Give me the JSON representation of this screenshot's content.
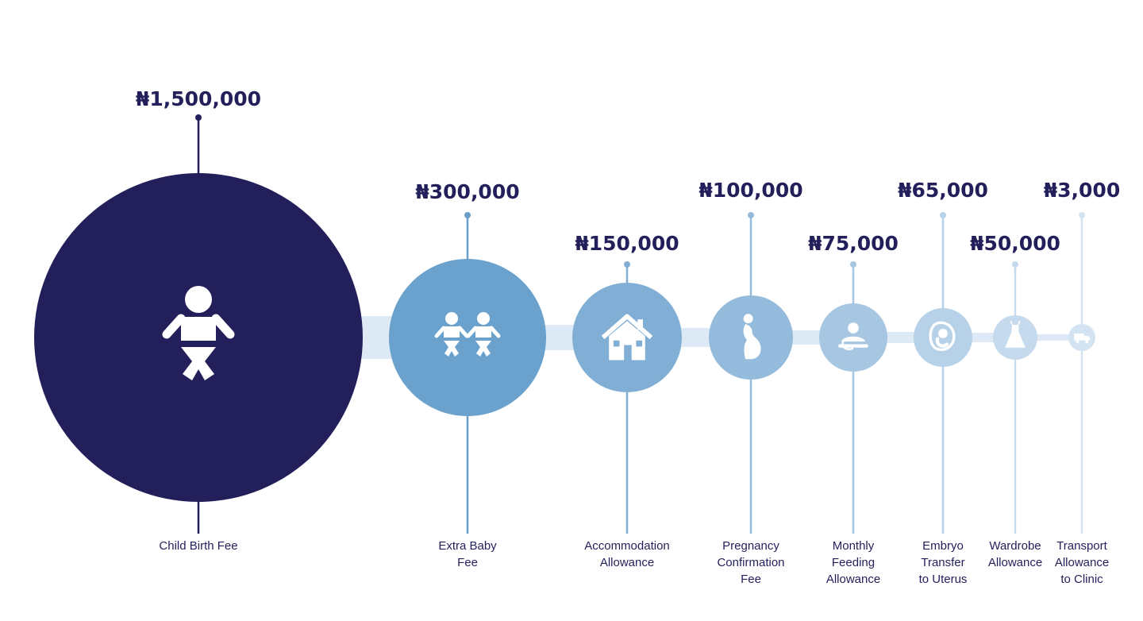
{
  "chart_data": {
    "type": "bubble",
    "currency_symbol": "₦",
    "items": [
      {
        "label_lines": [
          "Child Birth Fee"
        ],
        "amount": "₦1,500,000",
        "value": 1500000,
        "color": "#231f5a",
        "stem_color": "#231f5a",
        "icon": "baby-icon"
      },
      {
        "label_lines": [
          "Extra Baby",
          "Fee"
        ],
        "amount": "₦300,000",
        "value": 300000,
        "color": "#6aa2cd",
        "stem_color": "#6a9ec8",
        "icon": "twin-babies-icon"
      },
      {
        "label_lines": [
          "Accommodation",
          "Allowance"
        ],
        "amount": "₦150,000",
        "value": 150000,
        "color": "#80aed4",
        "stem_color": "#80aed4",
        "icon": "house-icon"
      },
      {
        "label_lines": [
          "Pregnancy",
          "Confirmation",
          "Fee"
        ],
        "amount": "₦100,000",
        "value": 100000,
        "color": "#95bbdc",
        "stem_color": "#95bbdc",
        "icon": "pregnant-woman-icon"
      },
      {
        "label_lines": [
          "Monthly",
          "Feeding",
          "Allowance"
        ],
        "amount": "₦75,000",
        "value": 75000,
        "color": "#a6c6e2",
        "stem_color": "#a6c6e2",
        "icon": "feeding-icon"
      },
      {
        "label_lines": [
          "Embryo",
          "Transfer",
          "to Uterus"
        ],
        "amount": "₦65,000",
        "value": 65000,
        "color": "#b7d1e8",
        "stem_color": "#b7d1e8",
        "icon": "embryo-icon"
      },
      {
        "label_lines": [
          "Wardrobe",
          "Allowance"
        ],
        "amount": "₦50,000",
        "value": 50000,
        "color": "#c6daed",
        "stem_color": "#c6daed",
        "icon": "dress-icon"
      },
      {
        "label_lines": [
          "Transport",
          "Allowance",
          "to Clinic"
        ],
        "amount": "₦3,000",
        "value": 3000,
        "color": "#d3e3f1",
        "stem_color": "#d3e3f1",
        "icon": "truck-icon"
      }
    ],
    "amount_color": "#231f5a",
    "label_color": "#231f5a",
    "connector_color": "#dde9f4"
  }
}
